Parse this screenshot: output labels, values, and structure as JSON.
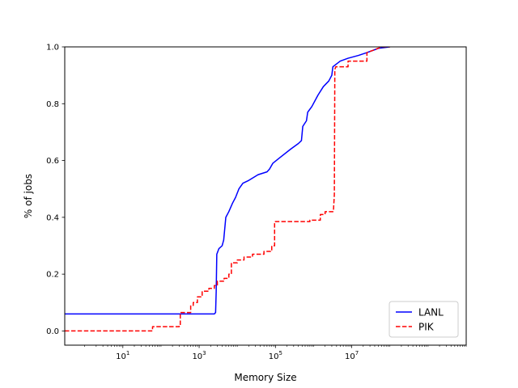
{
  "chart_data": {
    "type": "line",
    "title": "",
    "xlabel": "Memory Size",
    "ylabel": "% of jobs",
    "xscale": "log",
    "xlim": [
      0.3,
      10000000000
    ],
    "ylim": [
      -0.05,
      1.0
    ],
    "grid": false,
    "legend_position": "lower right",
    "x_tick_labels": [
      {
        "base": "10",
        "exp": "1",
        "value": 10
      },
      {
        "base": "10",
        "exp": "3",
        "value": 1000
      },
      {
        "base": "10",
        "exp": "5",
        "value": 100000
      },
      {
        "base": "10",
        "exp": "7",
        "value": 10000000
      }
    ],
    "y_ticks": [
      0.0,
      0.2,
      0.4,
      0.6,
      0.8,
      1.0
    ],
    "y_tick_labels": [
      "0.0",
      "0.2",
      "0.4",
      "0.6",
      "0.8",
      "1.0"
    ],
    "series": [
      {
        "name": "LANL",
        "color": "#0000ff",
        "style": "solid",
        "points": [
          [
            0.3,
            0.06
          ],
          [
            2500,
            0.06
          ],
          [
            2700,
            0.065
          ],
          [
            2800,
            0.14
          ],
          [
            2900,
            0.27
          ],
          [
            3300,
            0.29
          ],
          [
            4000,
            0.3
          ],
          [
            4400,
            0.32
          ],
          [
            5000,
            0.4
          ],
          [
            6000,
            0.42
          ],
          [
            7500,
            0.45
          ],
          [
            9000,
            0.47
          ],
          [
            11000,
            0.5
          ],
          [
            14000,
            0.52
          ],
          [
            20000,
            0.53
          ],
          [
            35000,
            0.55
          ],
          [
            60000,
            0.56
          ],
          [
            70000,
            0.57
          ],
          [
            85000,
            0.59
          ],
          [
            130000,
            0.61
          ],
          [
            250000,
            0.64
          ],
          [
            400000,
            0.66
          ],
          [
            480000,
            0.67
          ],
          [
            520000,
            0.72
          ],
          [
            650000,
            0.74
          ],
          [
            700000,
            0.77
          ],
          [
            900000,
            0.79
          ],
          [
            1300000,
            0.83
          ],
          [
            1800000,
            0.86
          ],
          [
            2500000,
            0.88
          ],
          [
            3000000,
            0.9
          ],
          [
            3200000,
            0.93
          ],
          [
            4000000,
            0.94
          ],
          [
            5000000,
            0.95
          ],
          [
            8000000,
            0.96
          ],
          [
            15000000,
            0.97
          ],
          [
            25000000,
            0.98
          ],
          [
            40000000,
            0.99
          ],
          [
            50000000,
            0.995
          ],
          [
            100000000,
            1.0
          ]
        ]
      },
      {
        "name": "PIK",
        "color": "#ff0000",
        "style": "dashed",
        "points": [
          [
            0.3,
            0.0
          ],
          [
            60,
            0.0
          ],
          [
            60,
            0.015
          ],
          [
            300,
            0.015
          ],
          [
            300,
            0.02
          ],
          [
            320,
            0.02
          ],
          [
            320,
            0.065
          ],
          [
            600,
            0.065
          ],
          [
            600,
            0.09
          ],
          [
            700,
            0.09
          ],
          [
            700,
            0.1
          ],
          [
            900,
            0.1
          ],
          [
            900,
            0.12
          ],
          [
            1200,
            0.12
          ],
          [
            1200,
            0.14
          ],
          [
            1800,
            0.14
          ],
          [
            1800,
            0.15
          ],
          [
            2500,
            0.15
          ],
          [
            2500,
            0.16
          ],
          [
            3000,
            0.16
          ],
          [
            3000,
            0.175
          ],
          [
            4500,
            0.175
          ],
          [
            4500,
            0.185
          ],
          [
            6000,
            0.185
          ],
          [
            6000,
            0.2
          ],
          [
            7000,
            0.2
          ],
          [
            7000,
            0.24
          ],
          [
            10000,
            0.24
          ],
          [
            10000,
            0.25
          ],
          [
            15000,
            0.25
          ],
          [
            15000,
            0.26
          ],
          [
            25000,
            0.26
          ],
          [
            25000,
            0.27
          ],
          [
            50000,
            0.27
          ],
          [
            50000,
            0.28
          ],
          [
            80000,
            0.28
          ],
          [
            80000,
            0.3
          ],
          [
            95000,
            0.3
          ],
          [
            95000,
            0.385
          ],
          [
            800000,
            0.385
          ],
          [
            800000,
            0.39
          ],
          [
            1500000,
            0.39
          ],
          [
            1500000,
            0.41
          ],
          [
            2000000,
            0.41
          ],
          [
            2000000,
            0.42
          ],
          [
            3300000,
            0.42
          ],
          [
            3500000,
            0.48
          ],
          [
            3600000,
            0.92
          ],
          [
            3800000,
            0.93
          ],
          [
            8000000,
            0.93
          ],
          [
            8000000,
            0.95
          ],
          [
            25000000,
            0.95
          ],
          [
            25000000,
            0.98
          ],
          [
            40000000,
            0.99
          ],
          [
            60000000,
            1.0
          ],
          [
            100000000,
            1.0
          ]
        ]
      }
    ]
  }
}
